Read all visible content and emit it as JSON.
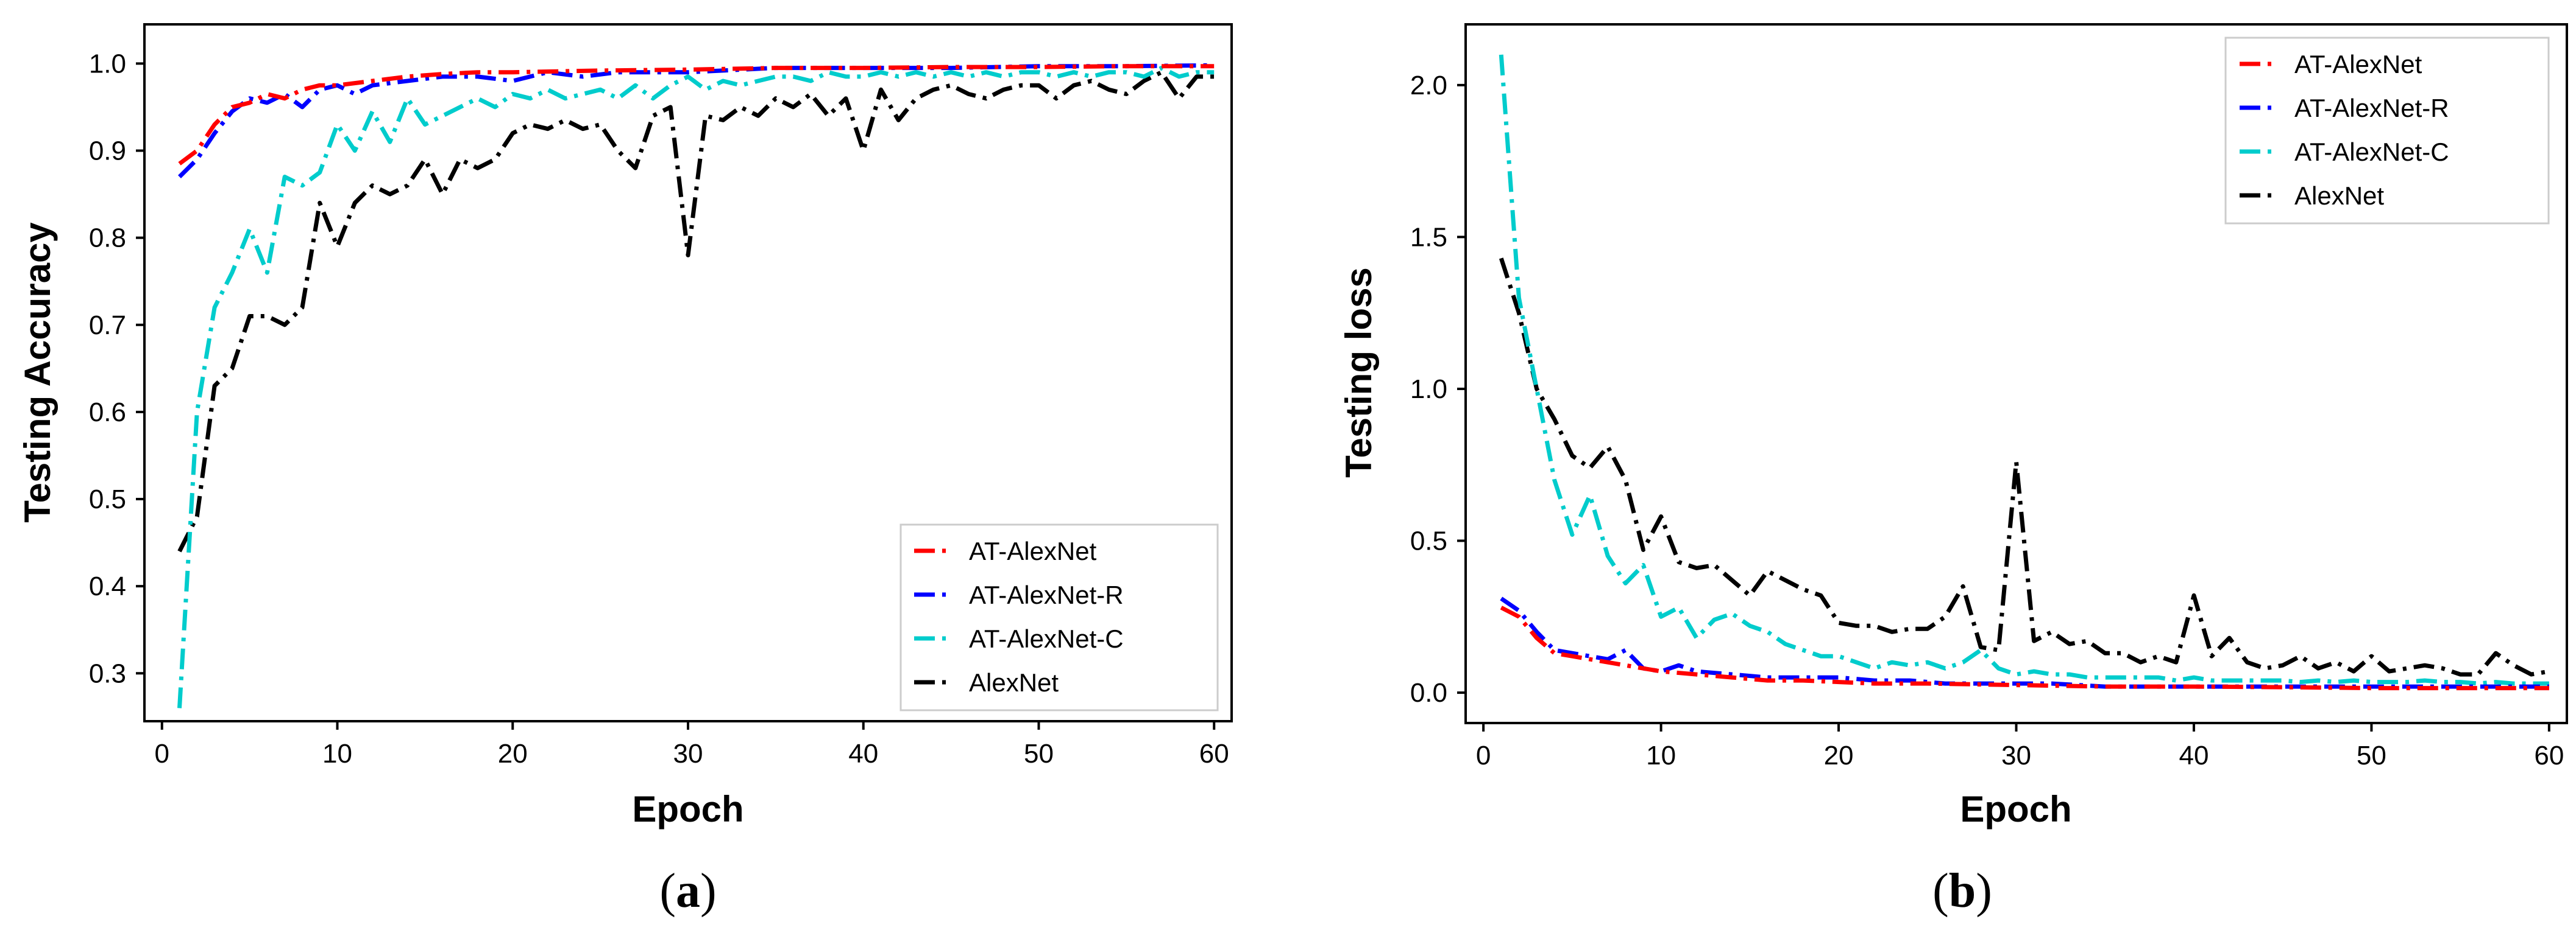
{
  "chart_data": [
    {
      "type": "line",
      "panel": "a",
      "caption_letter": "a",
      "xlabel": "Epoch",
      "ylabel": "Testing Accuracy",
      "xlim": [
        -1,
        61
      ],
      "ylim": [
        0.245,
        1.045
      ],
      "xticks": [
        "0",
        "10",
        "20",
        "30",
        "40",
        "50",
        "60"
      ],
      "yticks": [
        "0.3",
        "0.4",
        "0.5",
        "0.6",
        "0.7",
        "0.8",
        "0.9",
        "1.0"
      ],
      "legend_position": "lower-right",
      "series": [
        {
          "name": "AT-AlexNet",
          "color": "#ff0000",
          "x": [
            1,
            2,
            3,
            4,
            5,
            6,
            7,
            8,
            9,
            10,
            12,
            14,
            16,
            18,
            20,
            25,
            30,
            35,
            40,
            45,
            50,
            55,
            60
          ],
          "values": [
            0.885,
            0.9,
            0.93,
            0.95,
            0.955,
            0.965,
            0.96,
            0.97,
            0.975,
            0.975,
            0.98,
            0.985,
            0.988,
            0.99,
            0.99,
            0.992,
            0.993,
            0.995,
            0.995,
            0.996,
            0.996,
            0.997,
            0.997
          ]
        },
        {
          "name": "AT-AlexNet-R",
          "color": "#0000ff",
          "x": [
            1,
            2,
            3,
            4,
            5,
            6,
            7,
            8,
            9,
            10,
            11,
            12,
            14,
            16,
            18,
            20,
            22,
            24,
            26,
            28,
            30,
            35,
            40,
            45,
            50,
            55,
            60
          ],
          "values": [
            0.87,
            0.89,
            0.92,
            0.945,
            0.96,
            0.955,
            0.965,
            0.95,
            0.97,
            0.975,
            0.965,
            0.975,
            0.98,
            0.985,
            0.985,
            0.98,
            0.99,
            0.985,
            0.99,
            0.99,
            0.99,
            0.995,
            0.995,
            0.995,
            0.997,
            0.997,
            0.998
          ]
        },
        {
          "name": "AT-AlexNet-C",
          "color": "#00cccc",
          "x": [
            1,
            2,
            3,
            4,
            5,
            6,
            7,
            8,
            9,
            10,
            11,
            12,
            13,
            14,
            15,
            16,
            17,
            18,
            19,
            20,
            21,
            22,
            23,
            24,
            25,
            26,
            27,
            28,
            29,
            30,
            31,
            32,
            33,
            34,
            35,
            36,
            37,
            38,
            39,
            40,
            41,
            42,
            43,
            44,
            45,
            46,
            47,
            48,
            49,
            50,
            51,
            52,
            53,
            54,
            55,
            56,
            57,
            58,
            59,
            60
          ],
          "values": [
            0.26,
            0.6,
            0.72,
            0.76,
            0.81,
            0.76,
            0.87,
            0.86,
            0.875,
            0.93,
            0.9,
            0.945,
            0.91,
            0.96,
            0.93,
            0.94,
            0.95,
            0.96,
            0.95,
            0.965,
            0.96,
            0.97,
            0.96,
            0.965,
            0.97,
            0.96,
            0.975,
            0.96,
            0.975,
            0.985,
            0.97,
            0.98,
            0.975,
            0.98,
            0.985,
            0.985,
            0.98,
            0.99,
            0.985,
            0.985,
            0.99,
            0.985,
            0.99,
            0.985,
            0.99,
            0.985,
            0.99,
            0.985,
            0.99,
            0.99,
            0.985,
            0.99,
            0.985,
            0.99,
            0.99,
            0.985,
            0.995,
            0.985,
            0.99,
            0.99
          ]
        },
        {
          "name": "AlexNet",
          "color": "#000000",
          "x": [
            1,
            2,
            3,
            4,
            5,
            6,
            7,
            8,
            9,
            10,
            11,
            12,
            13,
            14,
            15,
            16,
            17,
            18,
            19,
            20,
            21,
            22,
            23,
            24,
            25,
            26,
            27,
            28,
            29,
            30,
            31,
            32,
            33,
            34,
            35,
            36,
            37,
            38,
            39,
            40,
            41,
            42,
            43,
            44,
            45,
            46,
            47,
            48,
            49,
            50,
            51,
            52,
            53,
            54,
            55,
            56,
            57,
            58,
            59,
            60
          ],
          "values": [
            0.44,
            0.48,
            0.63,
            0.65,
            0.71,
            0.71,
            0.7,
            0.72,
            0.84,
            0.79,
            0.84,
            0.86,
            0.85,
            0.86,
            0.89,
            0.85,
            0.89,
            0.88,
            0.89,
            0.92,
            0.93,
            0.925,
            0.935,
            0.925,
            0.93,
            0.9,
            0.88,
            0.94,
            0.95,
            0.78,
            0.94,
            0.935,
            0.95,
            0.94,
            0.96,
            0.95,
            0.965,
            0.94,
            0.96,
            0.9,
            0.97,
            0.935,
            0.96,
            0.97,
            0.975,
            0.965,
            0.96,
            0.97,
            0.975,
            0.975,
            0.96,
            0.975,
            0.98,
            0.97,
            0.965,
            0.98,
            0.99,
            0.96,
            0.985,
            0.985
          ]
        }
      ]
    },
    {
      "type": "line",
      "panel": "b",
      "caption_letter": "b",
      "xlabel": "Epoch",
      "ylabel": "Testing loss",
      "xlim": [
        -1,
        61
      ],
      "ylim": [
        -0.1,
        2.2
      ],
      "xticks": [
        "0",
        "10",
        "20",
        "30",
        "40",
        "50",
        "60"
      ],
      "yticks": [
        "0.0",
        "0.5",
        "1.0",
        "1.5",
        "2.0"
      ],
      "legend_position": "upper-right",
      "series": [
        {
          "name": "AT-AlexNet",
          "color": "#ff0000",
          "x": [
            1,
            2,
            3,
            4,
            5,
            6,
            7,
            8,
            9,
            10,
            12,
            14,
            16,
            18,
            20,
            22,
            25,
            30,
            35,
            40,
            45,
            50,
            55,
            60
          ],
          "values": [
            0.28,
            0.25,
            0.18,
            0.13,
            0.12,
            0.11,
            0.1,
            0.09,
            0.08,
            0.07,
            0.06,
            0.05,
            0.04,
            0.04,
            0.035,
            0.03,
            0.03,
            0.025,
            0.02,
            0.02,
            0.018,
            0.015,
            0.015,
            0.015
          ]
        },
        {
          "name": "AT-AlexNet-R",
          "color": "#0000ff",
          "x": [
            1,
            2,
            3,
            4,
            5,
            6,
            7,
            8,
            9,
            10,
            11,
            12,
            14,
            16,
            18,
            20,
            22,
            24,
            26,
            28,
            30,
            32,
            35,
            40,
            45,
            50,
            55,
            60
          ],
          "values": [
            0.31,
            0.27,
            0.2,
            0.14,
            0.13,
            0.12,
            0.11,
            0.14,
            0.08,
            0.07,
            0.09,
            0.07,
            0.06,
            0.05,
            0.05,
            0.05,
            0.04,
            0.04,
            0.03,
            0.03,
            0.03,
            0.03,
            0.02,
            0.02,
            0.02,
            0.02,
            0.02,
            0.02
          ]
        },
        {
          "name": "AT-AlexNet-C",
          "color": "#00cccc",
          "x": [
            1,
            2,
            3,
            4,
            5,
            6,
            7,
            8,
            9,
            10,
            11,
            12,
            13,
            14,
            15,
            16,
            17,
            18,
            19,
            20,
            21,
            22,
            23,
            24,
            25,
            26,
            27,
            28,
            29,
            30,
            31,
            32,
            33,
            34,
            35,
            36,
            37,
            38,
            39,
            40,
            41,
            42,
            43,
            44,
            45,
            46,
            47,
            48,
            49,
            50,
            51,
            52,
            53,
            54,
            55,
            56,
            57,
            58,
            59,
            60
          ],
          "values": [
            2.1,
            1.3,
            1.0,
            0.7,
            0.52,
            0.65,
            0.45,
            0.36,
            0.42,
            0.25,
            0.28,
            0.18,
            0.24,
            0.26,
            0.22,
            0.2,
            0.16,
            0.14,
            0.12,
            0.12,
            0.1,
            0.08,
            0.1,
            0.09,
            0.1,
            0.08,
            0.1,
            0.14,
            0.08,
            0.06,
            0.07,
            0.06,
            0.06,
            0.05,
            0.05,
            0.05,
            0.05,
            0.05,
            0.04,
            0.05,
            0.04,
            0.04,
            0.04,
            0.04,
            0.04,
            0.035,
            0.04,
            0.035,
            0.04,
            0.035,
            0.035,
            0.035,
            0.04,
            0.035,
            0.035,
            0.03,
            0.035,
            0.03,
            0.03,
            0.03
          ]
        },
        {
          "name": "AlexNet",
          "color": "#000000",
          "x": [
            1,
            2,
            3,
            4,
            5,
            6,
            7,
            8,
            9,
            10,
            11,
            12,
            13,
            14,
            15,
            16,
            17,
            18,
            19,
            20,
            21,
            22,
            23,
            24,
            25,
            26,
            27,
            28,
            29,
            30,
            31,
            32,
            33,
            34,
            35,
            36,
            37,
            38,
            39,
            40,
            41,
            42,
            43,
            44,
            45,
            46,
            47,
            48,
            49,
            50,
            51,
            52,
            53,
            54,
            55,
            56,
            57,
            58,
            59,
            60
          ],
          "values": [
            1.43,
            1.25,
            1.0,
            0.9,
            0.78,
            0.74,
            0.81,
            0.7,
            0.47,
            0.58,
            0.43,
            0.41,
            0.42,
            0.37,
            0.32,
            0.4,
            0.37,
            0.34,
            0.32,
            0.23,
            0.22,
            0.22,
            0.2,
            0.21,
            0.21,
            0.25,
            0.35,
            0.15,
            0.14,
            0.76,
            0.17,
            0.2,
            0.16,
            0.17,
            0.13,
            0.13,
            0.1,
            0.12,
            0.1,
            0.32,
            0.12,
            0.18,
            0.1,
            0.08,
            0.09,
            0.12,
            0.08,
            0.1,
            0.07,
            0.12,
            0.07,
            0.08,
            0.09,
            0.08,
            0.06,
            0.06,
            0.13,
            0.09,
            0.06,
            0.07
          ]
        }
      ]
    }
  ]
}
